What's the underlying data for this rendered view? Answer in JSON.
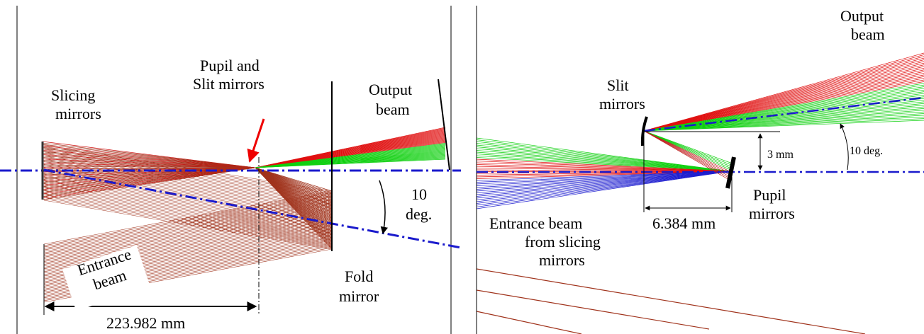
{
  "left_panel": {
    "slicing_label": [
      "Slicing",
      "mirrors"
    ],
    "pupil_slit_label": [
      "Pupil and",
      "Slit mirrors"
    ],
    "output_label": [
      "Output",
      "beam"
    ],
    "angle_label": [
      "10",
      "deg."
    ],
    "entrance_label": [
      "Entrance",
      "beam"
    ],
    "fold_label": [
      "Fold",
      "mirror"
    ],
    "distance_label": "223.982 mm"
  },
  "right_panel": {
    "slit_label": [
      "Slit",
      "mirrors"
    ],
    "output_label": [
      "Output",
      "beam"
    ],
    "offset_label": "3 mm",
    "angle_label": "10 deg.",
    "pupil_label": [
      "Pupil",
      "mirrors"
    ],
    "distance_label": "6.384 mm",
    "entrance_label": [
      "Entrance beam",
      "from slicing",
      "mirrors"
    ]
  }
}
